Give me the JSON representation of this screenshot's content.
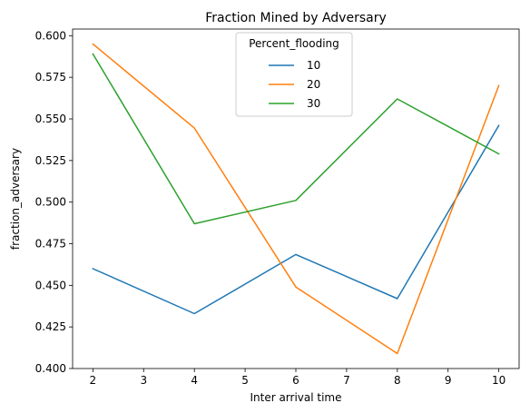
{
  "chart_data": {
    "type": "line",
    "title": "Fraction Mined by Adversary",
    "xlabel": "Inter arrival time",
    "ylabel": "fraction_adversary",
    "x": [
      2,
      4,
      6,
      8,
      10
    ],
    "xlim": [
      1.6,
      10.4
    ],
    "ylim": [
      0.4,
      0.604
    ],
    "xticks": [
      "2",
      "3",
      "4",
      "5",
      "6",
      "7",
      "8",
      "9",
      "10"
    ],
    "yticks": [
      "0.400",
      "0.425",
      "0.450",
      "0.475",
      "0.500",
      "0.525",
      "0.550",
      "0.575",
      "0.600"
    ],
    "grid": false,
    "legend": {
      "title": "Percent_flooding",
      "placement": "upper center"
    },
    "series": [
      {
        "name": "10",
        "color": "#1f77b4",
        "values": [
          0.46,
          0.433,
          0.4685,
          0.442,
          0.546
        ]
      },
      {
        "name": "20",
        "color": "#ff7f0e",
        "values": [
          0.595,
          0.5445,
          0.449,
          0.409,
          0.57
        ]
      },
      {
        "name": "30",
        "color": "#2ca02c",
        "values": [
          0.589,
          0.487,
          0.501,
          0.562,
          0.529
        ]
      }
    ]
  }
}
